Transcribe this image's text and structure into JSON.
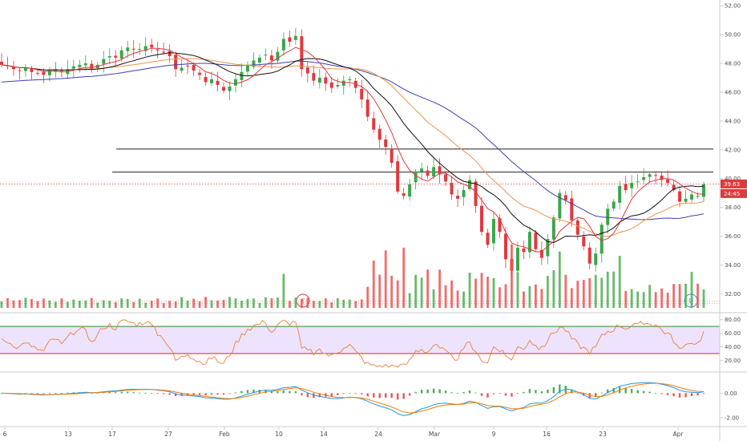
{
  "colors": {
    "up": "#26a69a",
    "up_candle": "#3aa64a",
    "down": "#e0393e",
    "sma_fast": "#e0393e",
    "sma_mid": "#111111",
    "sma_slow": "#f0924b",
    "sma_long": "#3f3fb5",
    "hline": "#222222",
    "price_line": "#e0393e",
    "rsi_line": "#e8803a",
    "rsi_band": "#ede3ff",
    "rsi_upper": "#2e8b2e",
    "rsi_lower": "#e0393e",
    "macd_line": "#2196f3",
    "signal_line": "#f57c00",
    "vol_up": "#4caf50",
    "vol_down": "#ef5350",
    "axis": "#cccccc"
  },
  "chart_data": [
    {
      "type": "candlestick",
      "panel": "price",
      "x_tick_labels": [
        "6",
        "13",
        "17",
        "27",
        "Feb",
        "10",
        "14",
        "24",
        "Mar",
        "9",
        "16",
        "23",
        "Apr"
      ],
      "y_tick_labels": [
        "32.00",
        "34.00",
        "36.00",
        "38.00",
        "40.00",
        "42.00",
        "44.00",
        "46.00",
        "48.00",
        "50.00",
        "52.00"
      ],
      "ylim": [
        30.8,
        52.4
      ],
      "close_series": [
        47.9,
        47.8,
        47.6,
        47.5,
        47.7,
        47.4,
        47.3,
        47.2,
        47.5,
        47.6,
        47.4,
        47.6,
        47.8,
        47.9,
        48.0,
        47.6,
        47.9,
        48.3,
        48.5,
        48.4,
        48.9,
        49.1,
        49.0,
        49.0,
        49.2,
        49.1,
        48.9,
        48.8,
        48.5,
        47.6,
        47.7,
        47.8,
        47.5,
        47.2,
        46.7,
        46.9,
        46.5,
        46.1,
        46.4,
        46.9,
        47.4,
        47.9,
        48.2,
        48.4,
        48.6,
        48.2,
        48.8,
        49.7,
        49.5,
        49.9,
        47.6,
        47.3,
        46.8,
        47.0,
        46.6,
        46.3,
        46.5,
        46.8,
        46.9,
        46.3,
        45.5,
        44.3,
        43.4,
        42.7,
        42.2,
        41.1,
        39.1,
        38.8,
        39.6,
        40.5,
        40.7,
        40.2,
        40.8,
        40.3,
        39.8,
        38.9,
        38.6,
        39.2,
        39.9,
        38.1,
        36.3,
        35.4,
        37.2,
        36.3,
        34.4,
        33.6,
        35.2,
        34.9,
        36.3,
        35.1,
        34.5,
        35.8,
        37.3,
        39.0,
        38.5,
        37.1,
        36.1,
        35.3,
        34.1,
        34.8,
        36.8,
        37.9,
        38.4,
        39.5,
        39.2,
        39.7,
        39.8,
        40.1,
        40.3,
        40.2,
        39.9,
        39.7,
        39.2,
        38.4,
        38.6,
        38.9,
        38.8,
        39.6
      ],
      "sma_fast_end": 38.9,
      "sma_mid_end": 38.7,
      "sma_slow_end": 38.5,
      "sma_long_end": 39.5,
      "horizontal_levels": [
        42.05,
        40.45
      ],
      "last_price_label": "39.63",
      "secondary_label": "24:45",
      "last_price": 39.63,
      "event_markers": [
        "E",
        "D"
      ]
    },
    {
      "type": "bar",
      "panel": "volume",
      "spikes_at_index": [
        47,
        62,
        64,
        67,
        85,
        93,
        103,
        118
      ]
    },
    {
      "type": "line",
      "panel": "rsi",
      "y_tick_labels": [
        "80.00",
        "60.00",
        "40.00",
        "20.00"
      ],
      "ylim": [
        5,
        88
      ],
      "upper_band": 70,
      "lower_band": 30,
      "last_value": 58
    },
    {
      "type": "line",
      "panel": "macd",
      "y_tick_labels": [
        "0.00",
        "-2.00"
      ],
      "ylim": [
        -2.6,
        1.6
      ],
      "series": [
        {
          "line": "macd"
        },
        {
          "line": "signal"
        },
        {
          "line": "histogram"
        }
      ]
    }
  ]
}
